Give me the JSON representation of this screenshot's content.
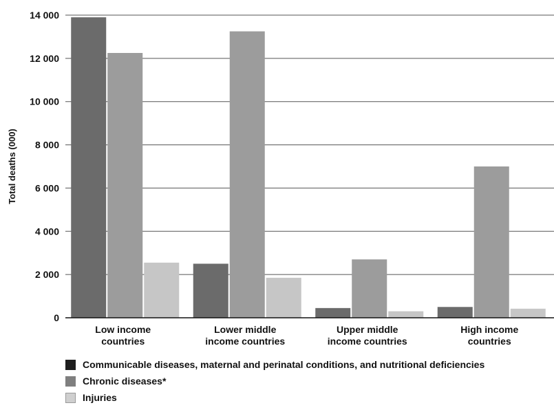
{
  "chart_data": {
    "type": "bar",
    "title": "",
    "xlabel": "",
    "ylabel": "Total deaths (000)",
    "ylim": [
      0,
      14000
    ],
    "yticks": [
      0,
      2000,
      4000,
      6000,
      8000,
      10000,
      12000,
      14000
    ],
    "ytick_labels": [
      "0",
      "2 000",
      "4 000",
      "6 000",
      "8 000",
      "10 000",
      "12 000",
      "14 000"
    ],
    "grid": true,
    "legend_position": "bottom",
    "categories": [
      [
        "Low income",
        "countries"
      ],
      [
        "Lower middle",
        "income countries"
      ],
      [
        "Upper middle",
        "income countries"
      ],
      [
        "High income",
        "countries"
      ]
    ],
    "series": [
      {
        "name": "Communicable diseases, maternal and perinatal conditions, and nutritional deficiencies",
        "color": "#6b6b6b",
        "values": [
          13900,
          2500,
          450,
          500
        ]
      },
      {
        "name": "Chronic diseases*",
        "color": "#9c9c9c",
        "values": [
          12250,
          13250,
          2700,
          7000
        ]
      },
      {
        "name": "Injuries",
        "color": "#c6c6c6",
        "values": [
          2550,
          1850,
          300,
          420
        ]
      }
    ]
  }
}
